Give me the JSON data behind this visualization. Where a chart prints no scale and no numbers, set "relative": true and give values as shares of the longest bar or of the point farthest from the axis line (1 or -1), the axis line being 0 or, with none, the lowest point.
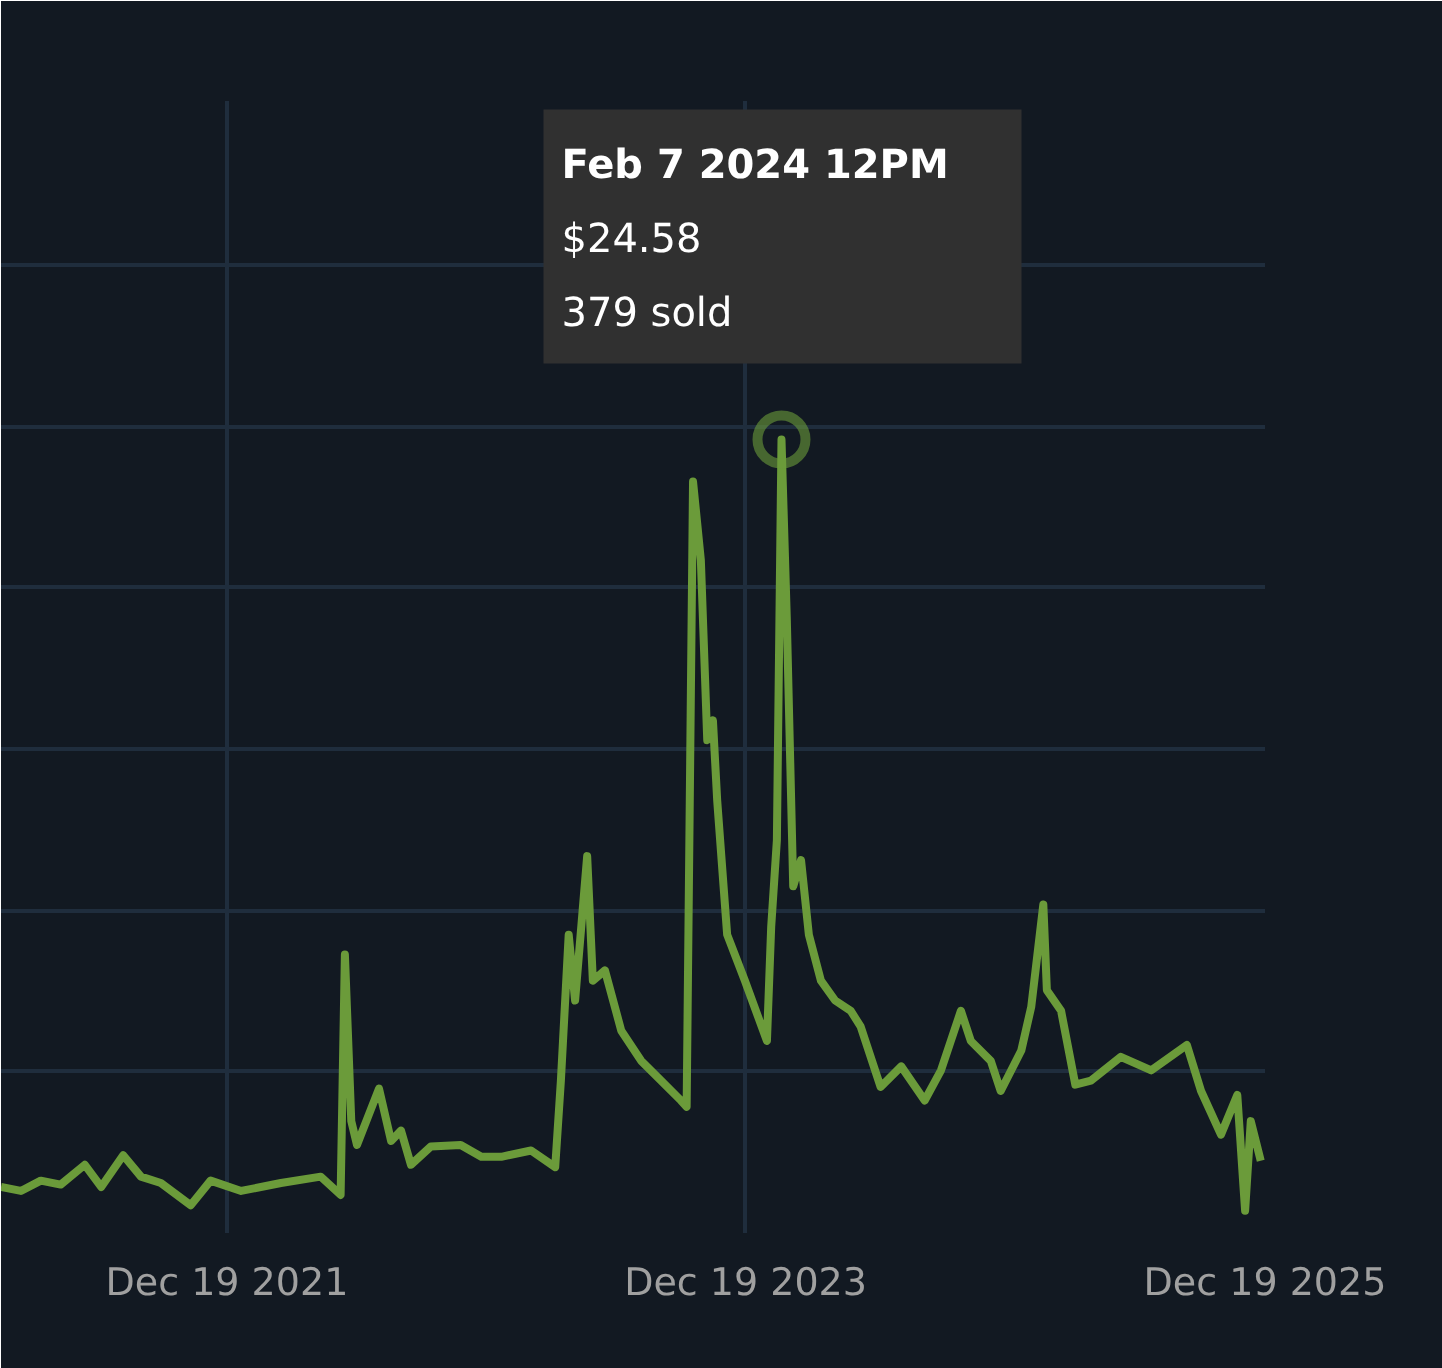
{
  "chart_data": {
    "type": "line",
    "relative": true,
    "tick_labels": "x",
    "grid": true,
    "marker": "none",
    "line_style": "solid",
    "x": [
      "2021-02-04",
      "2021-03-04",
      "2021-04-01",
      "2021-04-29",
      "2021-06-02",
      "2021-06-25",
      "2021-07-26",
      "2021-08-20",
      "2021-09-17",
      "2021-10-29",
      "2021-11-26",
      "2022-01-08",
      "2022-03-05",
      "2022-04-30",
      "2022-05-28",
      "2022-06-03",
      "2022-06-12",
      "2022-06-20",
      "2022-07-21",
      "2022-08-07",
      "2022-08-21",
      "2022-09-04",
      "2022-10-02",
      "2022-11-13",
      "2022-12-12",
      "2023-01-09",
      "2023-02-20",
      "2023-03-26",
      "2023-04-03",
      "2023-04-14",
      "2023-04-23",
      "2023-05-10",
      "2023-05-18",
      "2023-06-04",
      "2023-06-27",
      "2023-07-25",
      "2023-08-22",
      "2023-09-19",
      "2023-09-27",
      "2023-10-06",
      "2023-10-17",
      "2023-10-26",
      "2023-11-03",
      "2023-11-09",
      "2023-11-23",
      "2023-12-18",
      "2024-01-18",
      "2024-01-24",
      "2024-02-01",
      "2024-02-07T12:00",
      "2024-02-15",
      "2024-02-24",
      "2024-03-06",
      "2024-03-17",
      "2024-04-03",
      "2024-04-23",
      "2024-05-15",
      "2024-05-29",
      "2024-06-26",
      "2024-07-25",
      "2024-08-27",
      "2024-09-19",
      "2024-10-17",
      "2024-10-31",
      "2024-11-28",
      "2024-12-12",
      "2025-01-10",
      "2025-01-24",
      "2025-02-10",
      "2025-02-15",
      "2025-03-07",
      "2025-03-27",
      "2025-04-18",
      "2025-05-30",
      "2025-07-12",
      "2025-08-31",
      "2025-09-20",
      "2025-10-18",
      "2025-11-10",
      "2025-11-21",
      "2025-11-29",
      "2025-12-13"
    ],
    "series": [
      {
        "color": "#6b9b3a",
        "values": [
          0.058,
          0.053,
          0.066,
          0.061,
          0.086,
          0.058,
          0.098,
          0.071,
          0.063,
          0.035,
          0.066,
          0.053,
          0.063,
          0.071,
          0.048,
          0.351,
          0.141,
          0.111,
          0.182,
          0.116,
          0.129,
          0.086,
          0.109,
          0.111,
          0.096,
          0.096,
          0.104,
          0.083,
          0.192,
          0.376,
          0.293,
          0.475,
          0.318,
          0.331,
          0.255,
          0.217,
          0.192,
          0.167,
          0.159,
          0.947,
          0.848,
          0.621,
          0.646,
          0.545,
          0.376,
          0.318,
          0.242,
          0.386,
          0.495,
          1,
          0.773,
          0.437,
          0.47,
          0.376,
          0.318,
          0.293,
          0.28,
          0.26,
          0.184,
          0.21,
          0.167,
          0.205,
          0.28,
          0.242,
          0.217,
          0.179,
          0.23,
          0.285,
          0.414,
          0.306,
          0.28,
          0.187,
          0.192,
          0.222,
          0.205,
          0.237,
          0.179,
          0.124,
          0.174,
          0.028,
          0.141,
          0.091
        ]
      }
    ],
    "xlim": [
      "2021-02-04",
      "2025-12-19"
    ],
    "xticks": [
      {
        "value": "2021-12-19",
        "label": "Dec 19 2021"
      },
      {
        "value": "2023-12-19",
        "label": "Dec 19 2023"
      },
      {
        "value": "2025-12-19",
        "label": "Dec 19 2025"
      }
    ],
    "annotations": [
      "Feb 7 2024 12PM",
      "$24.58",
      {
        "text": "379 sold",
        "x": "2024-02-07T12:00",
        "y": 1
      }
    ]
  }
}
